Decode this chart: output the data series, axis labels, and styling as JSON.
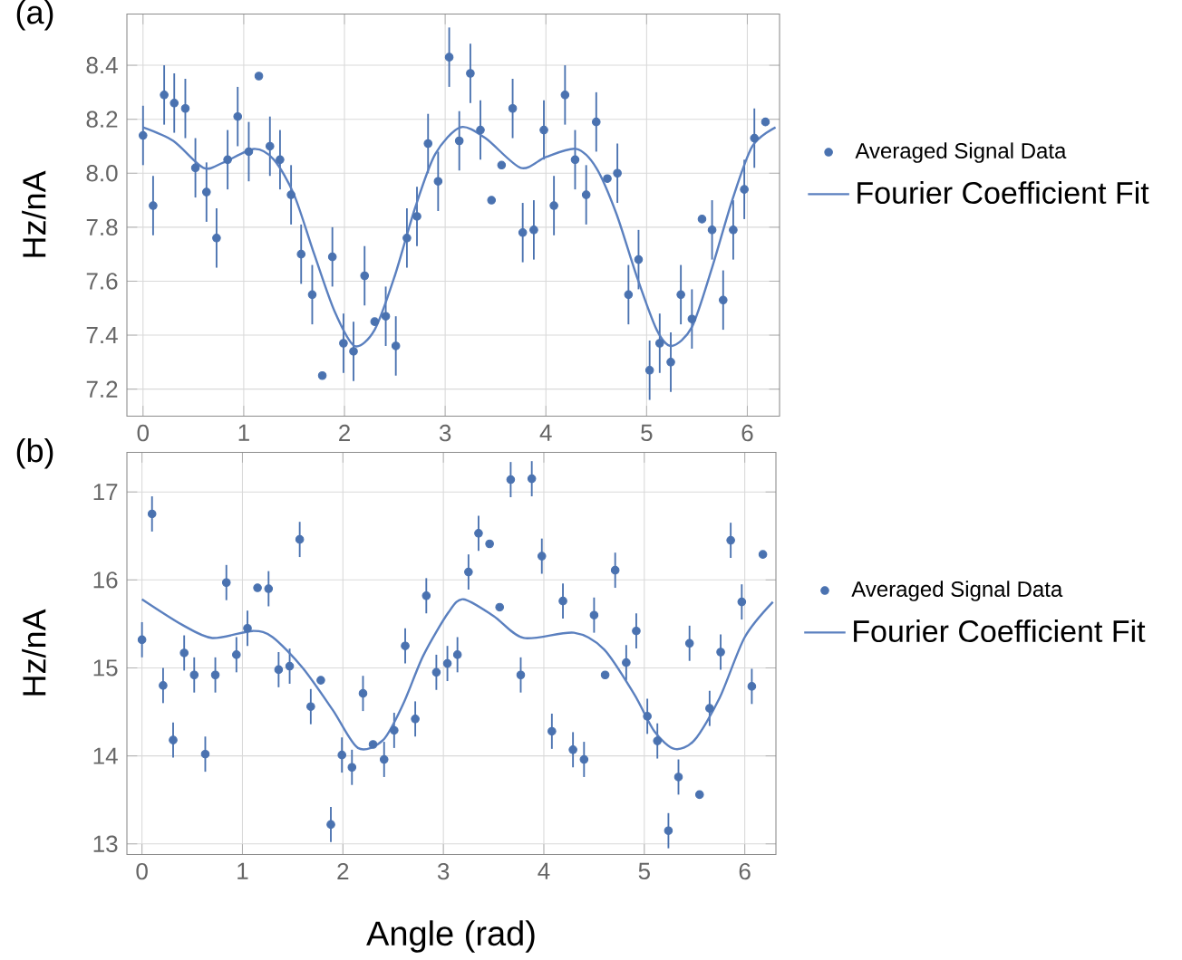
{
  "chart_data": [
    {
      "type": "scatter",
      "marker": "circle",
      "title": "(a)",
      "ylabel": "Hz/nA",
      "xlim": [
        -0.16,
        6.32
      ],
      "ylim": [
        7.1,
        8.59
      ],
      "xticks": [
        0,
        1,
        2,
        3,
        4,
        5,
        6
      ],
      "yticks": [
        7.2,
        7.4,
        7.6,
        7.8,
        {
          "value": 8,
          "label": "8.0"
        },
        8.2,
        8.4
      ],
      "grid": true,
      "legend": "right",
      "series": [
        {
          "name": "Averaged Signal Data",
          "type": "scatter",
          "color": "#4a72b0",
          "x": [
            0,
            0.1,
            0.21,
            0.31,
            0.42,
            0.52,
            0.63,
            0.73,
            0.84,
            0.94,
            1.05,
            1.15,
            1.26,
            1.36,
            1.47,
            1.57,
            1.68,
            1.78,
            1.88,
            1.99,
            2.09,
            2.2,
            2.3,
            2.41,
            2.51,
            2.62,
            2.72,
            2.83,
            2.93,
            3.04,
            3.14,
            3.25,
            3.35,
            3.46,
            3.56,
            3.67,
            3.77,
            3.88,
            3.98,
            4.08,
            4.19,
            4.29,
            4.4,
            4.5,
            4.61,
            4.71,
            4.82,
            4.92,
            5.03,
            5.13,
            5.24,
            5.34,
            5.45,
            5.55,
            5.65,
            5.76,
            5.86,
            5.97,
            6.07,
            6.18
          ],
          "values": [
            8.14,
            7.88,
            8.29,
            8.26,
            8.24,
            8.02,
            7.93,
            7.76,
            8.05,
            8.21,
            8.08,
            8.36,
            8.1,
            8.05,
            7.92,
            7.7,
            7.55,
            7.25,
            7.69,
            7.37,
            7.34,
            7.62,
            7.45,
            7.47,
            7.36,
            7.76,
            7.84,
            8.11,
            7.97,
            8.43,
            8.12,
            8.37,
            8.16,
            7.9,
            8.03,
            8.24,
            7.78,
            7.79,
            8.16,
            7.88,
            8.29,
            8.05,
            7.92,
            8.19,
            7.98,
            8.0,
            7.55,
            7.68,
            7.27,
            7.37,
            7.3,
            7.55,
            7.46,
            7.83,
            7.79,
            7.53,
            7.79,
            7.94,
            8.13,
            8.19
          ],
          "errors": [
            0.11,
            0.11,
            0.11,
            0.11,
            0.11,
            0.11,
            0.11,
            0.11,
            0.11,
            0.11,
            0.11,
            null,
            0.11,
            0.11,
            0.11,
            0.11,
            0.11,
            null,
            0.11,
            0.11,
            0.11,
            0.11,
            null,
            0.11,
            0.11,
            0.11,
            0.11,
            0.11,
            0.11,
            0.11,
            0.11,
            0.11,
            0.11,
            null,
            null,
            0.11,
            0.11,
            0.11,
            0.11,
            0.11,
            0.11,
            0.11,
            0.11,
            0.11,
            null,
            0.11,
            0.11,
            0.11,
            0.11,
            0.11,
            0.11,
            0.11,
            0.11,
            null,
            0.11,
            0.11,
            0.11,
            0.11,
            0.11,
            null
          ]
        },
        {
          "name": "Fourier Coefficient Fit",
          "type": "line",
          "line_style": "solid",
          "marker": "none",
          "color": "#5b80bf",
          "x": [
            0,
            0.3,
            0.6,
            0.8,
            1.1,
            1.3,
            1.5,
            1.7,
            1.9,
            2.1,
            2.3,
            2.5,
            2.7,
            2.9,
            3.15,
            3.4,
            3.75,
            4.0,
            4.3,
            4.5,
            4.7,
            4.9,
            5.1,
            5.25,
            5.45,
            5.65,
            5.85,
            6.05,
            6.28
          ],
          "values": [
            8.17,
            8.12,
            8.02,
            8.04,
            8.09,
            8.05,
            7.92,
            7.7,
            7.49,
            7.36,
            7.42,
            7.62,
            7.87,
            8.07,
            8.17,
            8.13,
            8.02,
            8.06,
            8.09,
            8.02,
            7.85,
            7.62,
            7.42,
            7.36,
            7.43,
            7.65,
            7.9,
            8.1,
            8.17
          ]
        }
      ]
    },
    {
      "type": "scatter",
      "marker": "circle",
      "title": "(b)",
      "ylabel": "Hz/nA",
      "xlabel": "Angle (rad)",
      "xlim": [
        -0.15,
        6.31
      ],
      "ylim": [
        12.88,
        17.45
      ],
      "xticks": [
        0,
        1,
        2,
        3,
        4,
        5,
        6
      ],
      "yticks": [
        13,
        14,
        15,
        16,
        17
      ],
      "grid": true,
      "legend": "right",
      "series": [
        {
          "name": "Averaged Signal Data",
          "type": "scatter",
          "color": "#4a72b0",
          "x": [
            0,
            0.1,
            0.21,
            0.31,
            0.42,
            0.52,
            0.63,
            0.73,
            0.84,
            0.94,
            1.05,
            1.15,
            1.26,
            1.36,
            1.47,
            1.57,
            1.68,
            1.78,
            1.88,
            1.99,
            2.09,
            2.2,
            2.3,
            2.41,
            2.51,
            2.62,
            2.72,
            2.83,
            2.93,
            3.04,
            3.14,
            3.25,
            3.35,
            3.46,
            3.56,
            3.67,
            3.77,
            3.88,
            3.98,
            4.08,
            4.19,
            4.29,
            4.4,
            4.5,
            4.61,
            4.71,
            4.82,
            4.92,
            5.03,
            5.13,
            5.24,
            5.34,
            5.45,
            5.55,
            5.65,
            5.76,
            5.86,
            5.97,
            6.07,
            6.18
          ],
          "values": [
            15.32,
            16.75,
            14.8,
            14.18,
            15.17,
            14.92,
            14.02,
            14.92,
            15.97,
            15.15,
            15.45,
            15.91,
            15.9,
            14.98,
            15.02,
            16.46,
            14.56,
            14.86,
            13.22,
            14.01,
            13.87,
            14.71,
            14.13,
            13.96,
            14.29,
            15.25,
            14.42,
            15.82,
            14.95,
            15.05,
            15.15,
            16.09,
            16.53,
            16.41,
            15.69,
            17.14,
            14.92,
            17.15,
            16.27,
            14.28,
            15.76,
            14.07,
            13.96,
            15.6,
            14.92,
            16.11,
            15.06,
            15.42,
            14.45,
            14.17,
            13.15,
            13.76,
            15.28,
            13.56,
            14.54,
            15.18,
            16.45,
            15.75,
            14.79,
            16.29
          ],
          "errors": [
            0.2,
            0.2,
            0.2,
            0.2,
            0.2,
            0.2,
            0.2,
            0.2,
            0.2,
            0.2,
            0.2,
            null,
            0.2,
            0.2,
            0.2,
            0.2,
            0.2,
            null,
            0.2,
            0.2,
            0.2,
            0.2,
            null,
            0.2,
            0.2,
            0.2,
            0.2,
            0.2,
            0.2,
            0.2,
            0.2,
            0.2,
            0.2,
            null,
            null,
            0.2,
            0.2,
            0.2,
            0.2,
            0.2,
            0.2,
            0.2,
            0.2,
            0.2,
            null,
            0.2,
            0.2,
            0.2,
            0.2,
            0.2,
            0.2,
            0.2,
            0.2,
            null,
            0.2,
            0.2,
            0.2,
            0.2,
            0.2,
            null
          ]
        },
        {
          "name": "Fourier Coefficient Fit",
          "type": "line",
          "line_style": "solid",
          "marker": "none",
          "color": "#5b80bf",
          "x": [
            0,
            0.4,
            0.7,
            1.1,
            1.3,
            1.6,
            1.9,
            2.15,
            2.4,
            2.6,
            2.8,
            3.05,
            3.2,
            3.5,
            3.8,
            4.3,
            4.6,
            4.9,
            5.1,
            5.3,
            5.5,
            5.75,
            6.0,
            6.28
          ],
          "values": [
            15.78,
            15.49,
            15.34,
            15.42,
            15.35,
            15.0,
            14.52,
            14.09,
            14.18,
            14.59,
            15.14,
            15.63,
            15.78,
            15.59,
            15.34,
            15.4,
            15.21,
            14.7,
            14.28,
            14.08,
            14.18,
            14.66,
            15.35,
            15.75
          ]
        }
      ]
    }
  ]
}
